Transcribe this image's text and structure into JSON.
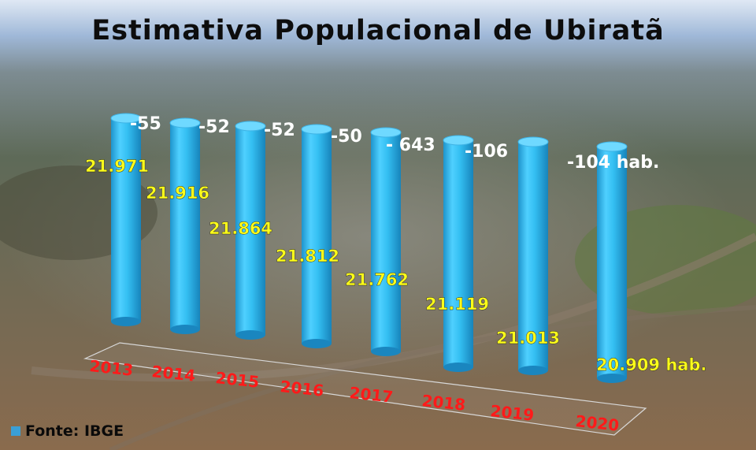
{
  "title": "Estimativa Populacional de Ubiratã",
  "source": "Fonte: IBGE",
  "colors": {
    "bar": "#2fb6ee",
    "value_label": "#ffff1a",
    "change_label": "#ffffff",
    "year_label": "#ff1a1a"
  },
  "chart_data": {
    "type": "bar",
    "title": "Estimativa Populacional de Ubiratã",
    "categories": [
      "2013",
      "2014",
      "2015",
      "2016",
      "2017",
      "2018",
      "2019",
      "2020"
    ],
    "values": [
      21971,
      21916,
      21864,
      21812,
      21762,
      21119,
      21013,
      20909
    ],
    "value_labels": [
      "21.971",
      "21.916",
      "21.864",
      "21.812",
      "21.762",
      "21.119",
      "21.013",
      "20.909 hab."
    ],
    "change_labels": [
      "-55",
      "-52",
      "-52",
      "-50",
      "- 643",
      "-106",
      "",
      "-104 hab."
    ],
    "xlabel": "",
    "ylabel": ""
  }
}
